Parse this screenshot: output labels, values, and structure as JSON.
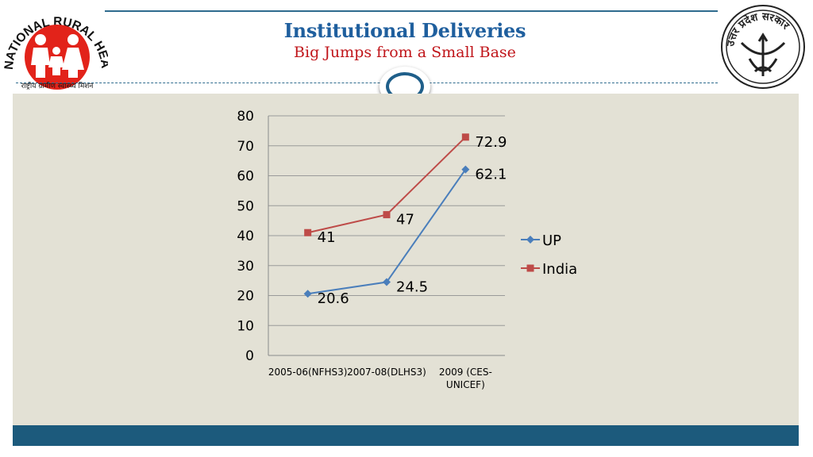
{
  "header": {
    "title": "Institutional Deliveries",
    "subtitle": "Big Jumps from a Small Base",
    "left_logo_text": "NATIONAL RURAL HEALTH MISSION",
    "left_logo_hindi": "राष्ट्रीय ग्रामीण स्वास्थ्य मिशन",
    "right_logo_text": "उत्तर प्रदेश सरकार"
  },
  "colors": {
    "title": "#1f5f9e",
    "subtitle": "#c0151a",
    "panel": "#e3e1d5",
    "band": "#1c5a7c",
    "up": "#4a7ebb",
    "india": "#be4b48"
  },
  "chart_data": {
    "type": "line",
    "categories": [
      "2005-06(NFHS3)",
      "2007-08(DLHS3)",
      "2009 (CES-UNICEF)"
    ],
    "category_lines": [
      [
        "2005-06(NFHS3)"
      ],
      [
        "2007-08(DLHS3)"
      ],
      [
        "2009 (CES-",
        "UNICEF)"
      ]
    ],
    "series": [
      {
        "name": "UP",
        "values": [
          20.6,
          24.5,
          62.1
        ],
        "labels": [
          "20.6",
          "24.5",
          "62.1"
        ],
        "color": "#4a7ebb",
        "marker": "diamond"
      },
      {
        "name": "India",
        "values": [
          41,
          47,
          72.9
        ],
        "labels": [
          "41",
          "47",
          "72.9"
        ],
        "color": "#be4b48",
        "marker": "square"
      }
    ],
    "yticks": [
      "0",
      "10",
      "20",
      "30",
      "40",
      "50",
      "60",
      "70",
      "80"
    ],
    "ylim": [
      0,
      80
    ],
    "grid": true,
    "legend": "right"
  }
}
